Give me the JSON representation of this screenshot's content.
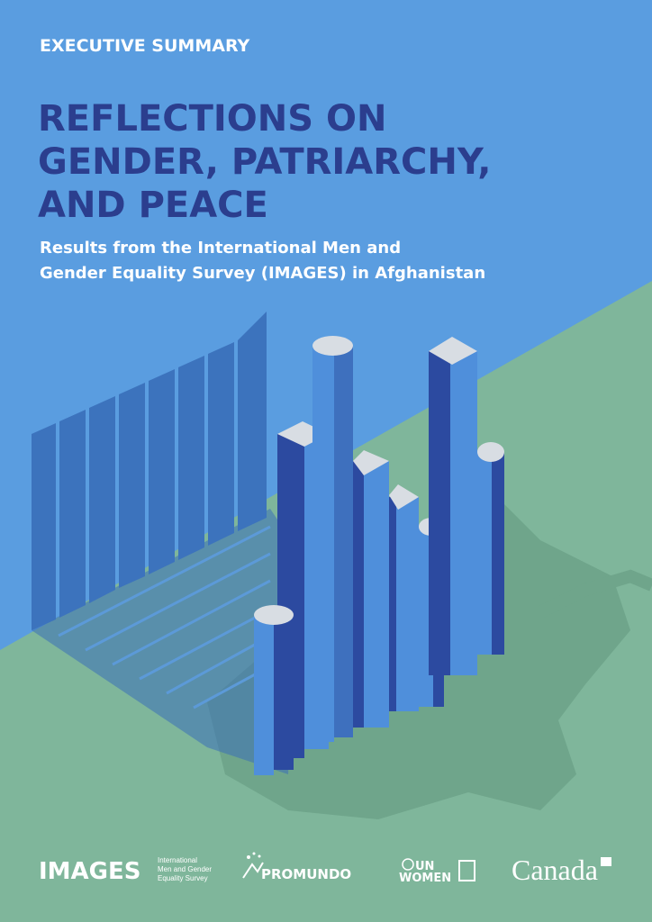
{
  "header": {
    "label": "EXECUTIVE SUMMARY"
  },
  "title": {
    "lines": [
      "REFLECTIONS ON",
      "GENDER, PATRIARCHY,",
      "AND PEACE"
    ]
  },
  "subtitle": {
    "lines": [
      "Results from the International Men and",
      "Gender Equality Survey (IMAGES) in Afghanistan"
    ]
  },
  "logos": {
    "images": {
      "name": "IMAGES",
      "tagline": [
        "International",
        "Men and Gender",
        "Equality Survey"
      ]
    },
    "promundo": "PROMUNDO",
    "unwomen": [
      "UN",
      "WOMEN"
    ],
    "canada": "Canada"
  }
}
